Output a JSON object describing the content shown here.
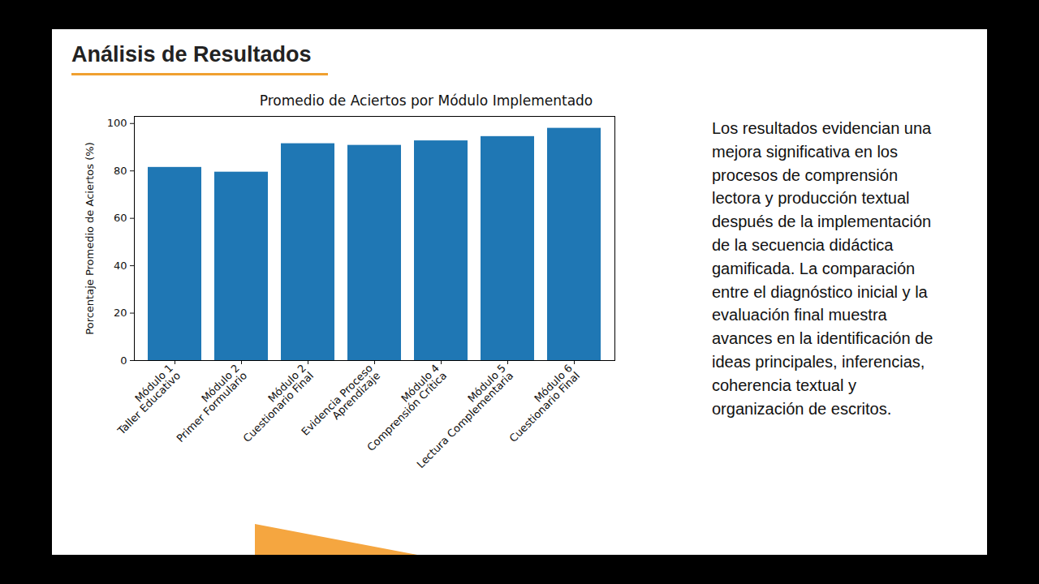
{
  "heading": "Análisis de Resultados",
  "text": "Los resultados evidencian una mejora significativa en los procesos de comprensión lectora y producción textual después de la implementación de la secuencia didáctica gamificada. La comparación entre el diagnóstico inicial y la evaluación final muestra avances en la identificación de ideas principales, inferencias, coherencia textual y organización de escritos.",
  "chart_data": {
    "type": "bar",
    "title": "Promedio de Aciertos por Módulo Implementado",
    "y_label": "Porcentaje Promedio de Aciertos (%)",
    "categories": [
      "Módulo 1\nTaller Educativo",
      "Módulo 2\nPrimer Formulario",
      "Módulo 2\nCuestionario Final",
      "Evidencia Proceso\nAprendizaje",
      "Módulo 4\nComprensión Crítica",
      "Módulo 5\nLectura Complementaria",
      "Módulo 6\nCuestionario Final"
    ],
    "values": [
      81.5,
      79.5,
      91.5,
      90.8,
      92.7,
      94.5,
      98.0
    ],
    "color": "#1f77b4",
    "ylim": [
      0,
      103
    ],
    "yticks": [
      0,
      20,
      40,
      60,
      80,
      100
    ],
    "grid": false
  }
}
